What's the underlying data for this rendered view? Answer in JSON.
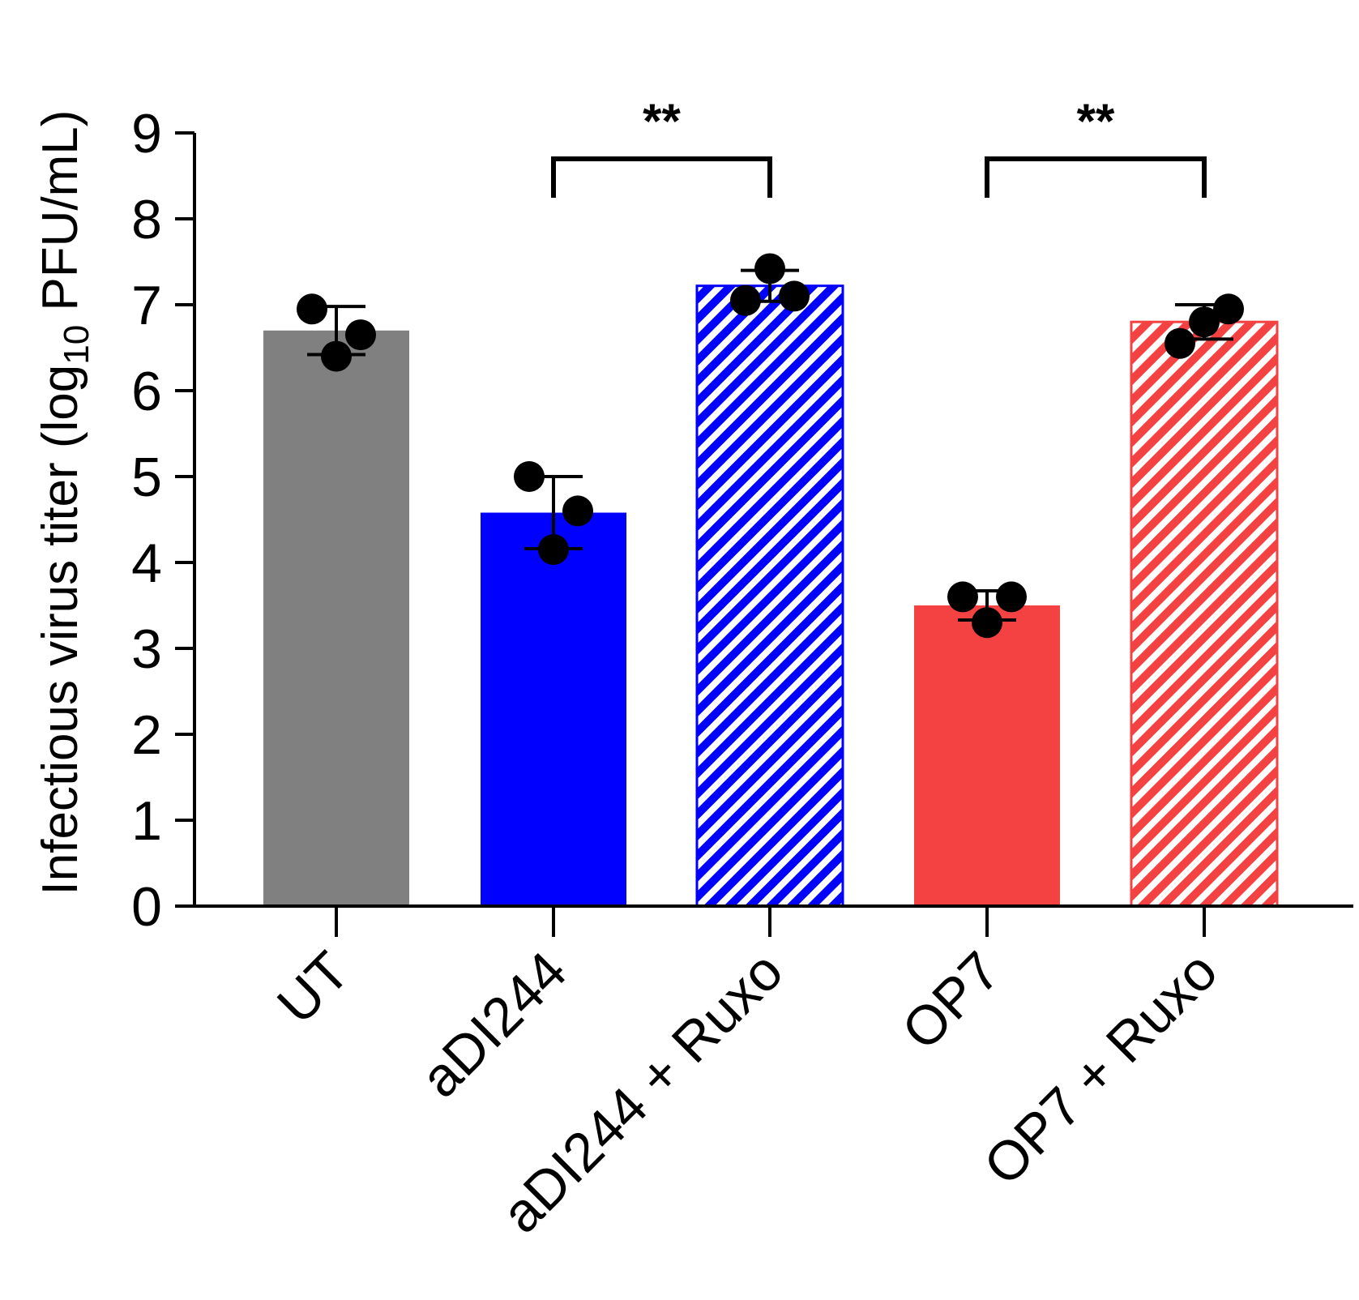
{
  "chart_data": {
    "type": "bar",
    "title": "",
    "xlabel": "",
    "ylabel": {
      "prefix": "Infectious virus titer (log",
      "subscript": "10",
      "suffix": " PFU/mL)"
    },
    "ylim": [
      0,
      9
    ],
    "yticks": [
      "0",
      "1",
      "2",
      "3",
      "4",
      "5",
      "6",
      "7",
      "8",
      "9"
    ],
    "categories": [
      "UT",
      "aDI244",
      "aDI244 + Ruxo",
      "OP7",
      "OP7 + Ruxo"
    ],
    "values": [
      6.7,
      4.58,
      7.22,
      3.5,
      6.8
    ],
    "error_sd": [
      0.28,
      0.42,
      0.18,
      0.17,
      0.2
    ],
    "replicates": [
      [
        6.95,
        6.65,
        6.4
      ],
      [
        5.0,
        4.6,
        4.15
      ],
      [
        7.05,
        7.1,
        7.42
      ],
      [
        3.6,
        3.6,
        3.3
      ],
      [
        6.55,
        6.95,
        6.8
      ]
    ],
    "colors": [
      "#808080",
      "#0000ff",
      "#0000ff",
      "#f44242",
      "#f44242"
    ],
    "hatched": [
      false,
      false,
      true,
      false,
      true
    ],
    "significance": [
      {
        "from": 1,
        "to": 2,
        "label": "**"
      },
      {
        "from": 3,
        "to": 4,
        "label": "**"
      }
    ]
  }
}
